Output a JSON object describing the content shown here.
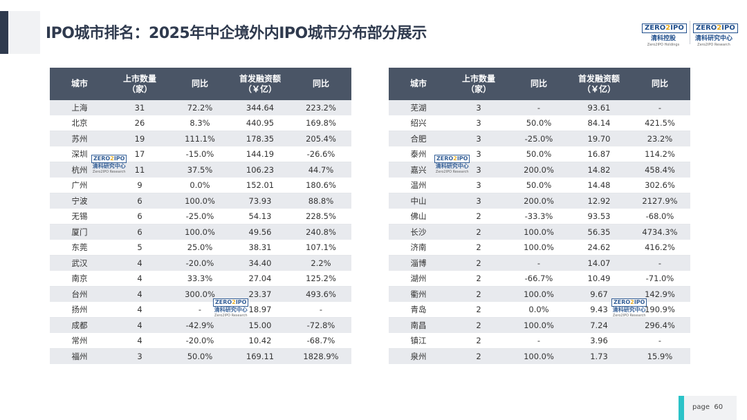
{
  "title": "IPO城市排名：2025年中企境外内IPO城市分布部分展示",
  "logo_holdings": {
    "mark_left": "ZERO",
    "mark_mid": "2",
    "mark_right": "IPO",
    "cn": "清科控股",
    "en": "Zero2IPO Holdings"
  },
  "logo_research": {
    "mark_left": "ZERO",
    "mark_mid": "2",
    "mark_right": "IPO",
    "cn": "清科研究中心",
    "en": "Zero2IPO Research"
  },
  "headers": {
    "city": "城市",
    "count_l1": "上市数量",
    "count_l2": "（家）",
    "yoy": "同比",
    "amount_l1": "首发融资额",
    "amount_l2": "（￥亿）",
    "yoy2": "同比"
  },
  "left_rows": [
    [
      "上海",
      "31",
      "72.2%",
      "344.64",
      "223.2%"
    ],
    [
      "北京",
      "26",
      "8.3%",
      "440.95",
      "169.8%"
    ],
    [
      "苏州",
      "19",
      "111.1%",
      "178.35",
      "205.4%"
    ],
    [
      "深圳",
      "17",
      "-15.0%",
      "144.19",
      "-26.6%"
    ],
    [
      "杭州",
      "11",
      "37.5%",
      "106.23",
      "44.7%"
    ],
    [
      "广州",
      "9",
      "0.0%",
      "152.01",
      "180.6%"
    ],
    [
      "宁波",
      "6",
      "100.0%",
      "73.93",
      "88.8%"
    ],
    [
      "无锡",
      "6",
      "-25.0%",
      "54.13",
      "228.5%"
    ],
    [
      "厦门",
      "6",
      "100.0%",
      "49.56",
      "240.8%"
    ],
    [
      "东莞",
      "5",
      "25.0%",
      "38.31",
      "107.1%"
    ],
    [
      "武汉",
      "4",
      "-20.0%",
      "34.40",
      "2.2%"
    ],
    [
      "南京",
      "4",
      "33.3%",
      "27.04",
      "125.2%"
    ],
    [
      "台州",
      "4",
      "300.0%",
      "23.37",
      "493.6%"
    ],
    [
      "扬州",
      "4",
      "-",
      "18.97",
      "-"
    ],
    [
      "成都",
      "4",
      "-42.9%",
      "15.00",
      "-72.8%"
    ],
    [
      "常州",
      "4",
      "-20.0%",
      "10.42",
      "-68.7%"
    ],
    [
      "福州",
      "3",
      "50.0%",
      "169.11",
      "1828.9%"
    ]
  ],
  "right_rows": [
    [
      "芜湖",
      "3",
      "-",
      "93.61",
      "-"
    ],
    [
      "绍兴",
      "3",
      "50.0%",
      "84.14",
      "421.5%"
    ],
    [
      "合肥",
      "3",
      "-25.0%",
      "19.70",
      "23.2%"
    ],
    [
      "泰州",
      "3",
      "50.0%",
      "16.87",
      "114.2%"
    ],
    [
      "嘉兴",
      "3",
      "200.0%",
      "14.82",
      "458.4%"
    ],
    [
      "温州",
      "3",
      "50.0%",
      "14.48",
      "302.6%"
    ],
    [
      "中山",
      "3",
      "200.0%",
      "12.92",
      "2127.9%"
    ],
    [
      "佛山",
      "2",
      "-33.3%",
      "93.53",
      "-68.0%"
    ],
    [
      "长沙",
      "2",
      "100.0%",
      "56.35",
      "4734.3%"
    ],
    [
      "济南",
      "2",
      "100.0%",
      "24.62",
      "416.2%"
    ],
    [
      "淄博",
      "2",
      "-",
      "14.07",
      "-"
    ],
    [
      "湖州",
      "2",
      "-66.7%",
      "10.49",
      "-71.0%"
    ],
    [
      "衢州",
      "2",
      "100.0%",
      "9.67",
      "142.9%"
    ],
    [
      "青岛",
      "2",
      "0.0%",
      "9.43",
      "190.9%"
    ],
    [
      "南昌",
      "2",
      "100.0%",
      "7.24",
      "296.4%"
    ],
    [
      "镇江",
      "2",
      "-",
      "3.96",
      "-"
    ],
    [
      "泉州",
      "2",
      "100.0%",
      "1.73",
      "15.9%"
    ]
  ],
  "page": {
    "label": "page",
    "number": "60"
  }
}
